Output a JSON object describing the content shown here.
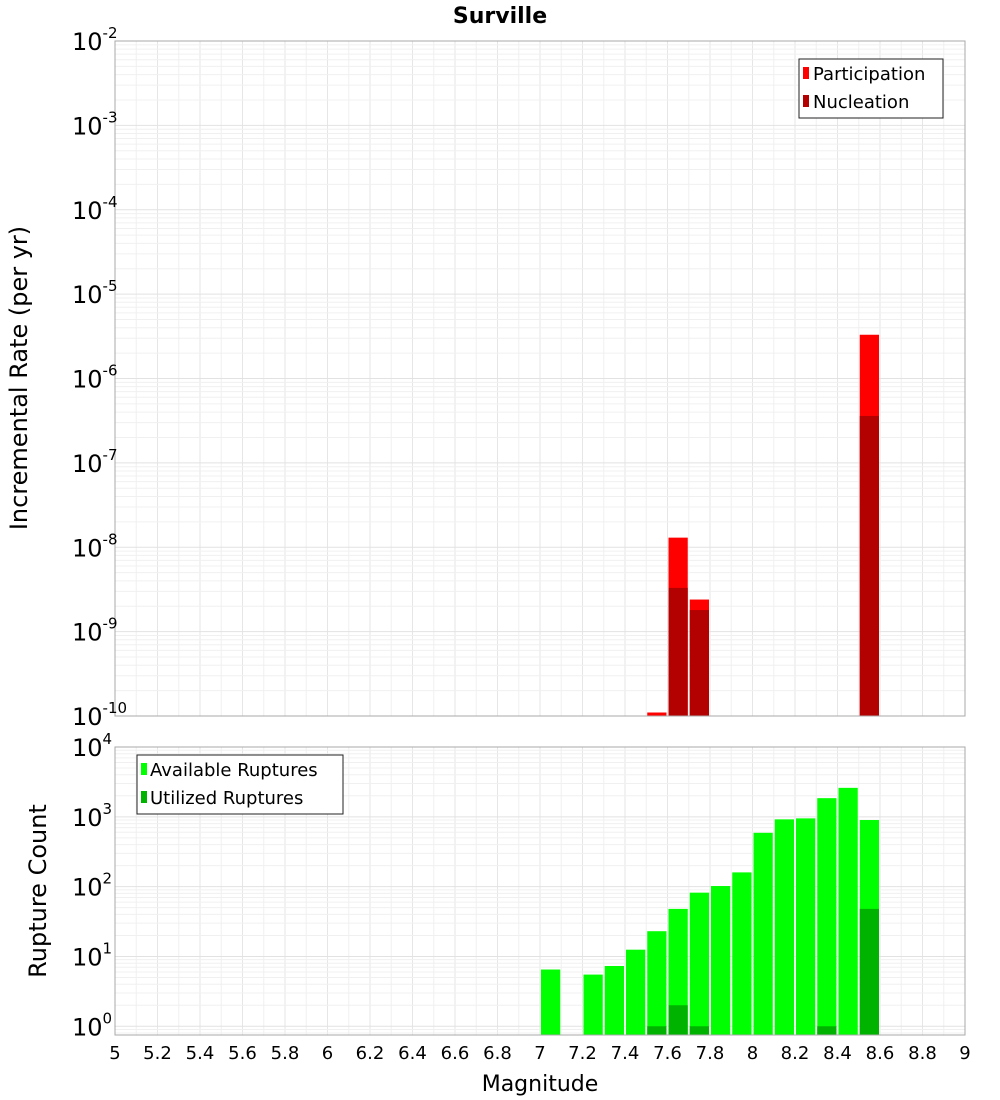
{
  "title": "Surville",
  "chart_data": [
    {
      "type": "bar",
      "ylabel": "Incremental Rate (per yr)",
      "yscale": "log",
      "ylim": [
        1e-10,
        0.01
      ],
      "xlim": [
        5,
        9
      ],
      "bin_width": 0.1,
      "grid": true,
      "legend_position": "top-right",
      "y_decades": [
        "-10",
        "-9",
        "-8",
        "-7",
        "-6",
        "-5",
        "-4",
        "-3",
        "-2"
      ],
      "series": [
        {
          "name": "Participation",
          "color": "#ff0000",
          "x": [
            7.55,
            7.65,
            7.75,
            8.55
          ],
          "values": [
            1.1e-10,
            1.3e-08,
            2.4e-09,
            3.3e-06
          ]
        },
        {
          "name": "Nucleation",
          "color": "#b30000",
          "x": [
            7.65,
            7.75,
            8.55
          ],
          "values": [
            3.3e-09,
            1.8e-09,
            3.6e-07
          ]
        }
      ]
    },
    {
      "type": "bar",
      "ylabel": "Rupture Count",
      "xlabel": "Magnitude",
      "yscale": "log",
      "ylim": [
        0.75,
        10000
      ],
      "xlim": [
        5,
        9
      ],
      "bin_width": 0.1,
      "grid": true,
      "legend_position": "top-left",
      "x_ticks": [
        "5",
        "5.2",
        "5.4",
        "5.6",
        "5.8",
        "6",
        "6.2",
        "6.4",
        "6.6",
        "6.8",
        "7",
        "7.2",
        "7.4",
        "7.6",
        "7.8",
        "8",
        "8.2",
        "8.4",
        "8.6",
        "8.8",
        "9"
      ],
      "y_decades": [
        "0",
        "1",
        "2",
        "3",
        "4"
      ],
      "series": [
        {
          "name": "Available Ruptures",
          "color": "#00ff00",
          "x": [
            7.05,
            7.25,
            7.35,
            7.45,
            7.55,
            7.65,
            7.75,
            7.85,
            7.95,
            8.05,
            8.15,
            8.25,
            8.35,
            8.45,
            8.55
          ],
          "values": [
            6.5,
            5.5,
            7.3,
            12.5,
            23,
            48,
            82,
            102,
            160,
            590,
            920,
            950,
            1850,
            2600,
            900
          ]
        },
        {
          "name": "Utilized Ruptures",
          "color": "#00b300",
          "x": [
            7.55,
            7.65,
            7.75,
            8.35,
            8.55
          ],
          "values": [
            1,
            2,
            1,
            1,
            48
          ]
        }
      ]
    }
  ]
}
